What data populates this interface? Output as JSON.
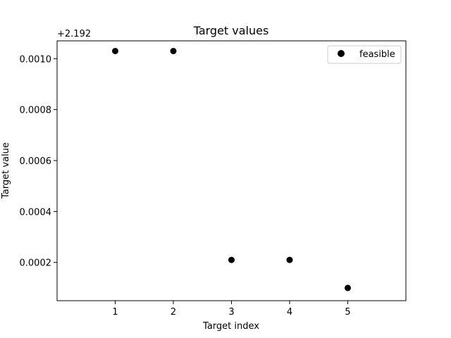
{
  "chart_data": {
    "type": "scatter",
    "title": "Target values",
    "xlabel": "Target index",
    "ylabel": "Target value",
    "y_offset_label": "+2.192",
    "xlim": [
      0,
      6
    ],
    "ylim": [
      5e-05,
      0.00107
    ],
    "xticks": [
      1,
      2,
      3,
      4,
      5
    ],
    "xtick_labels": [
      "1",
      "2",
      "3",
      "4",
      "5"
    ],
    "yticks": [
      0.0002,
      0.0004,
      0.0006,
      0.0008,
      0.001
    ],
    "ytick_labels": [
      "0.0002",
      "0.0004",
      "0.0006",
      "0.0008",
      "0.0010"
    ],
    "grid": false,
    "legend_position": "top-right",
    "series": [
      {
        "name": "feasible",
        "color": "#000000",
        "marker": "circle",
        "x": [
          1,
          2,
          3,
          4,
          5
        ],
        "y": [
          0.00103,
          0.00103,
          0.00021,
          0.00021,
          0.0001
        ]
      }
    ]
  }
}
